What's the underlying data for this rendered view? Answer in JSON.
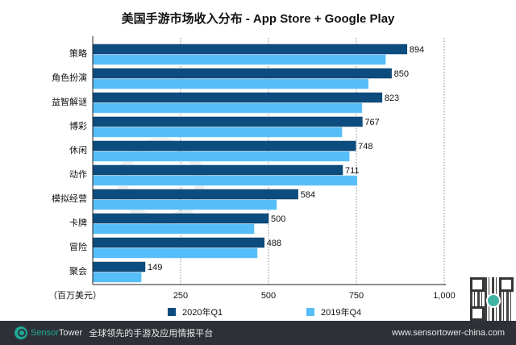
{
  "chart_data": {
    "type": "bar",
    "orientation": "horizontal",
    "title": "美国手游市场收入分布 - App Store + Google Play",
    "xlabel": "（百万美元）",
    "xlim": [
      0,
      1000
    ],
    "xticks": [
      "250",
      "500",
      "750",
      "1,000"
    ],
    "grid": "vertical dotted",
    "legend_position": "bottom",
    "categories": [
      "策略",
      "角色扮演",
      "益智解谜",
      "博彩",
      "休闲",
      "动作",
      "模拟经营",
      "卡牌",
      "冒险",
      "聚会"
    ],
    "series": [
      {
        "name": "2020年Q1",
        "color": "#0d4c7e",
        "values": [
          894,
          850,
          823,
          767,
          748,
          711,
          584,
          500,
          488,
          149
        ],
        "labels": [
          "894",
          "850",
          "823",
          "767",
          "748",
          "711",
          "584",
          "500",
          "488",
          "149"
        ]
      },
      {
        "name": "2019年Q4",
        "color": "#55bdf7",
        "values": [
          833,
          784,
          766,
          709,
          730,
          752,
          523,
          459,
          468,
          138
        ]
      }
    ]
  },
  "watermark": "SensorTower",
  "footer": {
    "brand_a": "Sensor",
    "brand_b": "Tower",
    "tagline": "全球领先的手游及应用情报平台",
    "url": "www.sensortower-china.com"
  }
}
